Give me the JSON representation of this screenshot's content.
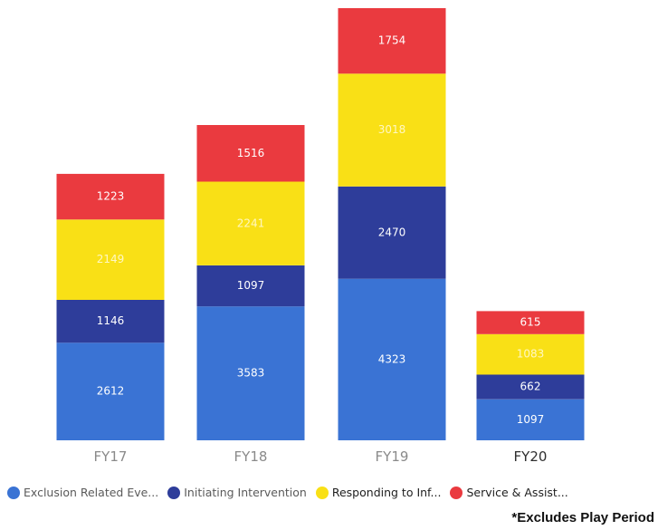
{
  "chart_data": {
    "type": "bar",
    "stacked": true,
    "categories": [
      "FY17",
      "FY18",
      "FY19",
      "FY20"
    ],
    "series": [
      {
        "name": "Exclusion Related Eve...",
        "color": "#3a73d4",
        "values": [
          2612,
          3583,
          4323,
          1097
        ]
      },
      {
        "name": "Initiating Intervention",
        "color": "#2e3d9a",
        "values": [
          1146,
          1097,
          2470,
          662
        ]
      },
      {
        "name": "Responding to Inf...",
        "color": "#f9e016",
        "values": [
          2149,
          2241,
          3018,
          1083
        ]
      },
      {
        "name": "Service & Assist...",
        "color": "#ea3a3f",
        "values": [
          1223,
          1516,
          1754,
          615
        ]
      }
    ],
    "title": "",
    "xlabel": "",
    "ylabel": "",
    "ylim": [
      0,
      11565
    ],
    "grid": false,
    "legend": "bottom"
  },
  "footnote": "*Excludes Play Period"
}
